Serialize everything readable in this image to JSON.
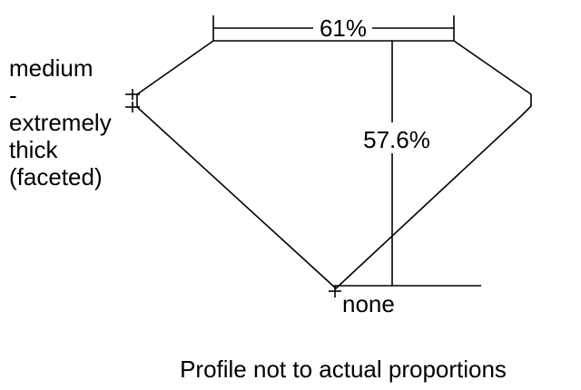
{
  "table_label": "61%",
  "depth_label": "57.6%",
  "girdle_label": [
    "medium",
    "-",
    "extremely",
    "thick",
    "(faceted)"
  ],
  "culet_label": "none",
  "caption": "Profile not to actual proportions",
  "colors": {
    "line": "#000000",
    "background": "#ffffff"
  }
}
